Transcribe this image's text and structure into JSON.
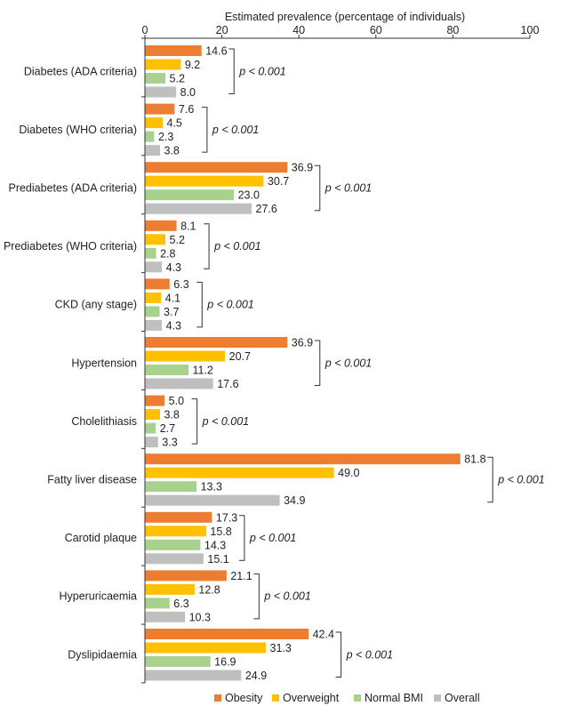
{
  "chart_data": {
    "type": "bar",
    "orientation": "horizontal",
    "xlabel": "Estimated prevalence (percentage of individuals)",
    "xlim": [
      0,
      100
    ],
    "xticks": [
      0,
      20,
      40,
      60,
      80,
      100
    ],
    "legend_position": "bottom-right",
    "categories": [
      "Diabetes (ADA criteria)",
      "Diabetes (WHO criteria)",
      "Prediabetes (ADA criteria)",
      "Prediabetes (WHO criteria)",
      "CKD (any stage)",
      "Hypertension",
      "Cholelithiasis",
      "Fatty liver disease",
      "Carotid plaque",
      "Hyperuricaemia",
      "Dyslipidaemia"
    ],
    "series": [
      {
        "name": "Obesity",
        "color": "#ED7D31",
        "values": [
          14.6,
          7.6,
          36.9,
          8.1,
          6.3,
          36.9,
          5.0,
          81.8,
          17.3,
          21.1,
          42.4
        ],
        "labels": [
          "14.6",
          "7.6",
          "36.9",
          "8.1",
          "6.3",
          "36.9",
          "5.0",
          "81.8",
          "17.3",
          "21.1",
          "42.4"
        ]
      },
      {
        "name": "Overweight",
        "color": "#FFC000",
        "values": [
          9.2,
          4.5,
          30.7,
          5.2,
          4.1,
          20.7,
          3.8,
          49.0,
          15.8,
          12.8,
          31.3
        ],
        "labels": [
          "9.2",
          "4.5",
          "30.7",
          "5.2",
          "4.1",
          "20.7",
          "3.8",
          "49.0",
          "15.8",
          "12.8",
          "31.3"
        ]
      },
      {
        "name": "Normal BMI",
        "color": "#A9D18E",
        "values": [
          5.2,
          2.3,
          23.0,
          2.8,
          3.7,
          11.2,
          2.7,
          13.3,
          14.3,
          6.3,
          16.9
        ],
        "labels": [
          "5.2",
          "2.3",
          "23.0",
          "2.8",
          "3.7",
          "11.2",
          "2.7",
          "13.3",
          "14.3",
          "6.3",
          "16.9"
        ]
      },
      {
        "name": "Overall",
        "color": "#BFBFBF",
        "values": [
          8.0,
          3.8,
          27.6,
          4.3,
          4.3,
          17.6,
          3.3,
          34.9,
          15.1,
          10.3,
          24.9
        ],
        "labels": [
          "8.0",
          "3.8",
          "27.6",
          "4.3",
          "4.3",
          "17.6",
          "3.3",
          "34.9",
          "15.1",
          "10.3",
          "24.9"
        ]
      }
    ],
    "annotations": [
      "p < 0.001",
      "p < 0.001",
      "p < 0.001",
      "p < 0.001",
      "p < 0.001",
      "p < 0.001",
      "p < 0.001",
      "p < 0.001",
      "p < 0.001",
      "p < 0.001",
      "p < 0.001"
    ]
  }
}
